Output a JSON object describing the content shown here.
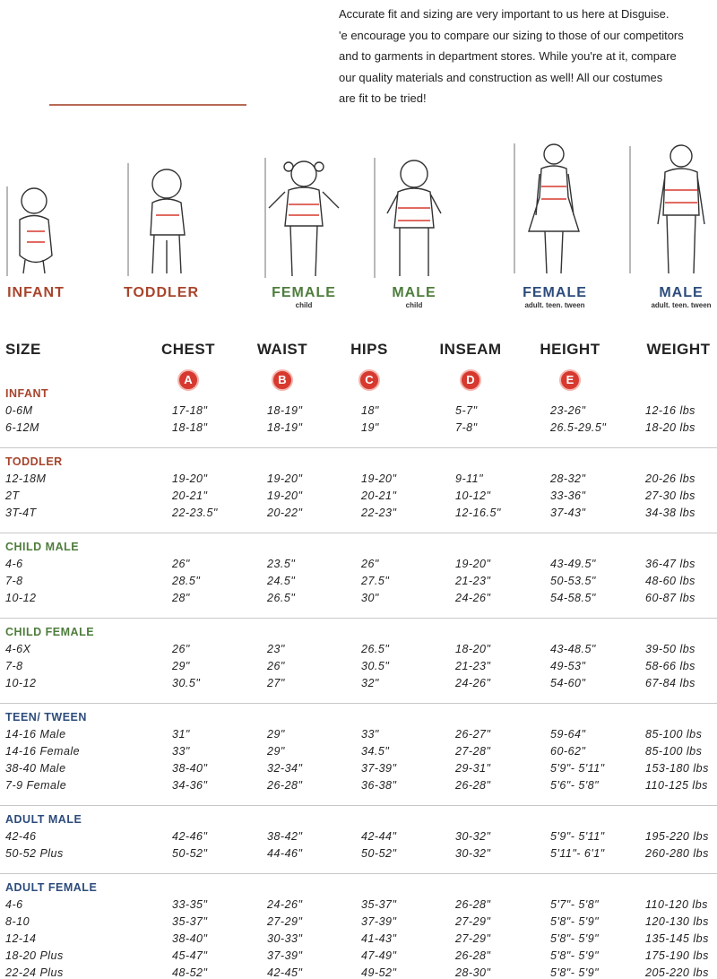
{
  "intro": [
    "Accurate fit and sizing are very important to us here at Disguise.",
    "'e encourage you to compare our sizing to those of our competitors",
    "and to garments in department stores. While you're at it, compare",
    "our quality materials and construction as well! All our costumes",
    "are fit to be tried!"
  ],
  "figures": [
    {
      "label": "INFANT",
      "color": "#a8442c"
    },
    {
      "label": "TODDLER",
      "color": "#a8442c"
    },
    {
      "label": "FEMALE",
      "sub": "child",
      "color": "#4e7d3c"
    },
    {
      "label": "MALE",
      "sub": "child",
      "color": "#4e7d3c"
    },
    {
      "label": "FEMALE",
      "sub": "adult. teen. tween",
      "color": "#2c4c7c"
    },
    {
      "label": "MALE",
      "sub": "adult. teen. tween",
      "color": "#2c4c7c"
    }
  ],
  "table": {
    "headers": [
      "SIZE",
      "CHEST",
      "WAIST",
      "HIPS",
      "INSEAM",
      "HEIGHT",
      "WEIGHT"
    ],
    "badges": [
      "A",
      "B",
      "C",
      "D",
      "E"
    ],
    "groups": [
      {
        "title": "INFANT",
        "color": "#a8442c",
        "rows": [
          [
            "0-6M",
            "17-18\"",
            "18-19\"",
            "18\"",
            "5-7\"",
            "23-26\"",
            "12-16 lbs"
          ],
          [
            "6-12M",
            "18-18\"",
            "18-19\"",
            "19\"",
            "7-8\"",
            "26.5-29.5\"",
            "18-20 lbs"
          ]
        ]
      },
      {
        "title": "TODDLER",
        "color": "#a8442c",
        "rows": [
          [
            "12-18M",
            "19-20\"",
            "19-20\"",
            "19-20\"",
            "9-11\"",
            "28-32\"",
            "20-26 lbs"
          ],
          [
            "2T",
            "20-21\"",
            "19-20\"",
            "20-21\"",
            "10-12\"",
            "33-36\"",
            "27-30 lbs"
          ],
          [
            "3T-4T",
            "22-23.5\"",
            "20-22\"",
            "22-23\"",
            "12-16.5\"",
            "37-43\"",
            "34-38 lbs"
          ]
        ]
      },
      {
        "title": "CHILD MALE",
        "color": "#4e7d3c",
        "rows": [
          [
            "4-6",
            "26\"",
            "23.5\"",
            "26\"",
            "19-20\"",
            "43-49.5\"",
            "36-47 lbs"
          ],
          [
            "7-8",
            "28.5\"",
            "24.5\"",
            "27.5\"",
            "21-23\"",
            "50-53.5\"",
            "48-60 lbs"
          ],
          [
            "10-12",
            "28\"",
            "26.5\"",
            "30\"",
            "24-26\"",
            "54-58.5\"",
            "60-87 lbs"
          ]
        ]
      },
      {
        "title": "CHILD FEMALE",
        "color": "#4e7d3c",
        "rows": [
          [
            "4-6X",
            "26\"",
            "23\"",
            "26.5\"",
            "18-20\"",
            "43-48.5\"",
            "39-50 lbs"
          ],
          [
            "7-8",
            "29\"",
            "26\"",
            "30.5\"",
            "21-23\"",
            "49-53\"",
            "58-66 lbs"
          ],
          [
            "10-12",
            "30.5\"",
            "27\"",
            "32\"",
            "24-26\"",
            "54-60\"",
            "67-84 lbs"
          ]
        ]
      },
      {
        "title": "TEEN/ TWEEN",
        "color": "#2c4c7c",
        "rows": [
          [
            "14-16 Male",
            "31\"",
            "29\"",
            "33\"",
            "26-27\"",
            "59-64\"",
            "85-100 lbs"
          ],
          [
            "14-16 Female",
            "33\"",
            "29\"",
            "34.5\"",
            "27-28\"",
            "60-62\"",
            "85-100 lbs"
          ],
          [
            "38-40 Male",
            "38-40\"",
            "32-34\"",
            "37-39\"",
            "29-31\"",
            "5'9\"- 5'11\"",
            "153-180 lbs"
          ],
          [
            "7-9 Female",
            "34-36\"",
            "26-28\"",
            "36-38\"",
            "26-28\"",
            "5'6\"- 5'8\"",
            "110-125 lbs"
          ]
        ]
      },
      {
        "title": "ADULT MALE",
        "color": "#2c4c7c",
        "rows": [
          [
            "42-46",
            "42-46\"",
            "38-42\"",
            "42-44\"",
            "30-32\"",
            "5'9\"- 5'11\"",
            "195-220 lbs"
          ],
          [
            "50-52 Plus",
            "50-52\"",
            "44-46\"",
            "50-52\"",
            "30-32\"",
            "5'11\"- 6'1\"",
            "260-280 lbs"
          ]
        ]
      },
      {
        "title": "ADULT FEMALE",
        "color": "#2c4c7c",
        "rows": [
          [
            "4-6",
            "33-35\"",
            "24-26\"",
            "35-37\"",
            "26-28\"",
            "5'7\"- 5'8\"",
            "110-120 lbs"
          ],
          [
            "8-10",
            "35-37\"",
            "27-29\"",
            "37-39\"",
            "27-29\"",
            "5'8\"- 5'9\"",
            "120-130 lbs"
          ],
          [
            "12-14",
            "38-40\"",
            "30-33\"",
            "41-43\"",
            "27-29\"",
            "5'8\"- 5'9\"",
            "135-145 lbs"
          ],
          [
            "18-20 Plus",
            "45-47\"",
            "37-39\"",
            "47-49\"",
            "26-28\"",
            "5'8\"- 5'9\"",
            "175-190 lbs"
          ],
          [
            "22-24 Plus",
            "48-52\"",
            "42-45\"",
            "49-52\"",
            "28-30\"",
            "5'8\"- 5'9\"",
            "205-220 lbs"
          ]
        ]
      }
    ]
  }
}
